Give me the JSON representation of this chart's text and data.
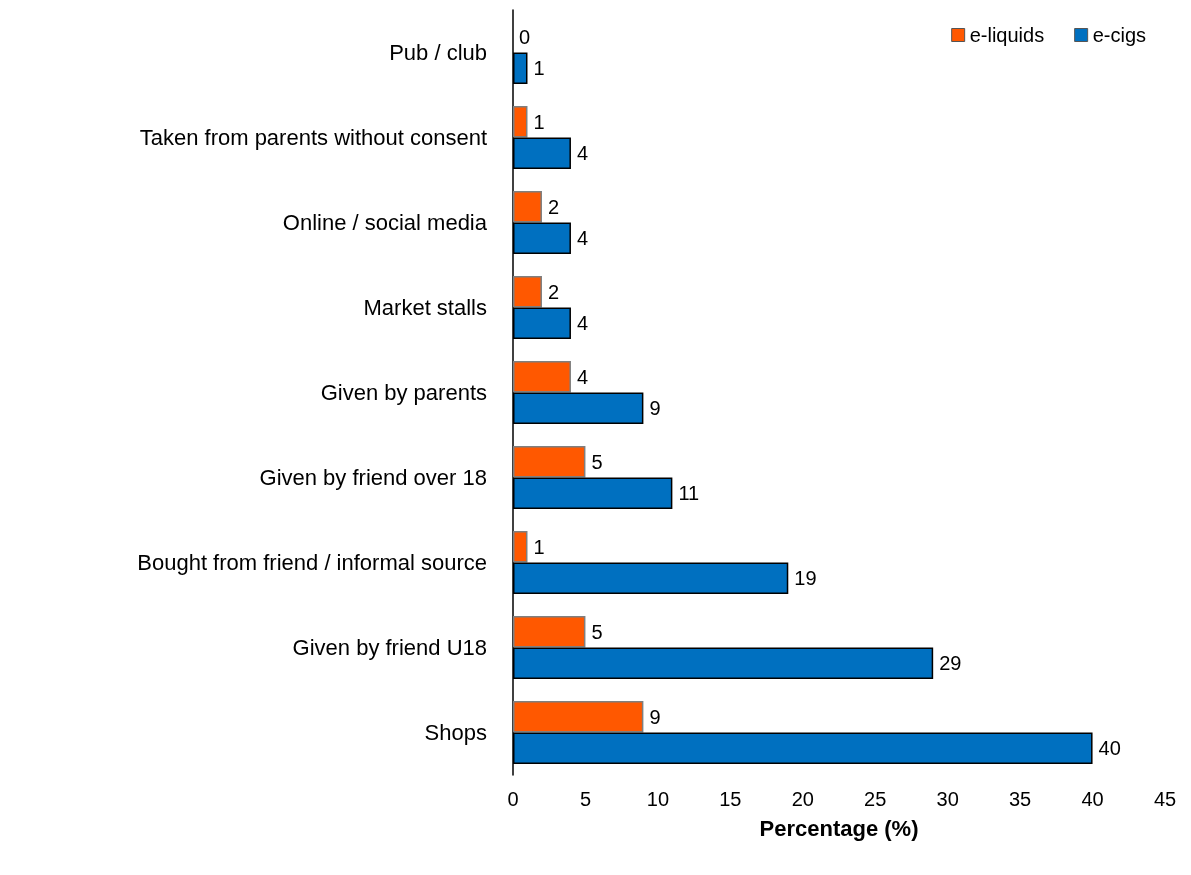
{
  "chart_data": {
    "type": "bar",
    "orientation": "horizontal",
    "xlabel": "Percentage (%)",
    "categories": [
      "Pub / club",
      "Taken from parents without consent",
      "Online / social media",
      "Market stalls",
      "Given by parents",
      "Given by friend over 18",
      "Bought from friend / informal source",
      "Given by friend U18",
      "Shops"
    ],
    "series": [
      {
        "name": "e-liquids",
        "color": "#ff5800",
        "values": [
          0,
          1,
          2,
          2,
          4,
          5,
          1,
          5,
          9
        ]
      },
      {
        "name": "e-cigs",
        "color": "#0070c0",
        "values": [
          1,
          4,
          4,
          4,
          9,
          11,
          19,
          29,
          40
        ]
      }
    ],
    "xlim": [
      0,
      45
    ],
    "xticks": [
      0,
      5,
      10,
      15,
      20,
      25,
      30,
      35,
      40,
      45
    ],
    "grid": false,
    "legend": "top right",
    "data_labels": true
  }
}
